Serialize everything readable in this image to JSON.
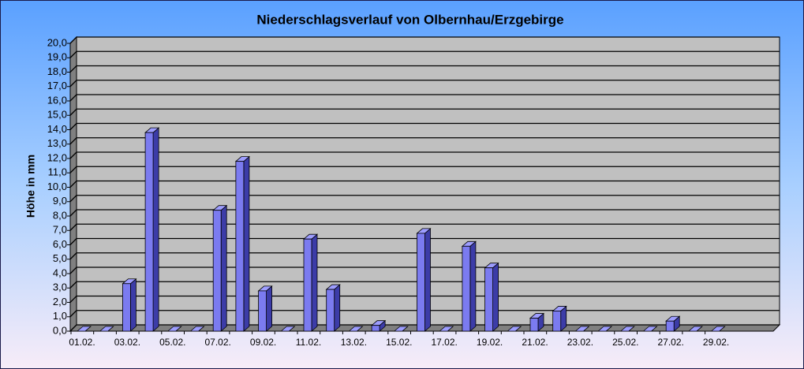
{
  "chart_data": {
    "type": "bar3d",
    "title": "Niederschlagsverlauf von Olbernhau/Erzgebirge",
    "ylabel": "Höhe in  mm",
    "categories": [
      "01.02.",
      null,
      "03.02.",
      null,
      "05.02.",
      null,
      "07.02.",
      null,
      "09.02.",
      null,
      "11.02.",
      null,
      "13.02.",
      null,
      "15.02.",
      null,
      "17.02.",
      null,
      "19.02.",
      null,
      "21.02.",
      null,
      "23.02.",
      null,
      "25.02.",
      null,
      "27.02.",
      null,
      "29.02."
    ],
    "values": [
      0,
      0,
      3.3,
      13.8,
      0,
      0,
      8.4,
      11.8,
      2.8,
      0,
      6.4,
      2.9,
      0,
      0.4,
      0,
      6.8,
      0,
      5.9,
      4.4,
      0,
      0.9,
      1.4,
      0,
      0,
      0,
      0,
      0.7,
      0,
      0
    ],
    "color": "#7b7bf0",
    "ylim": [
      0,
      20
    ],
    "yticks": [
      {
        "value": 0,
        "label": "0,0"
      },
      {
        "value": 1,
        "label": "1,0"
      },
      {
        "value": 2,
        "label": "2,0"
      },
      {
        "value": 3,
        "label": "3,0"
      },
      {
        "value": 4,
        "label": "4,0"
      },
      {
        "value": 5,
        "label": "5,0"
      },
      {
        "value": 6,
        "label": "6,0"
      },
      {
        "value": 7,
        "label": "7,0"
      },
      {
        "value": 8,
        "label": "8,0"
      },
      {
        "value": 9,
        "label": "9,0"
      },
      {
        "value": 10,
        "label": "10,0"
      },
      {
        "value": 11,
        "label": "11,0"
      },
      {
        "value": 12,
        "label": "12,0"
      },
      {
        "value": 13,
        "label": "13,0"
      },
      {
        "value": 14,
        "label": "14,0"
      },
      {
        "value": 15,
        "label": "15,0"
      },
      {
        "value": 16,
        "label": "16,0"
      },
      {
        "value": 17,
        "label": "17,0"
      },
      {
        "value": 18,
        "label": "18,0"
      },
      {
        "value": 19,
        "label": "19,0"
      },
      {
        "value": 20,
        "label": "20,0"
      }
    ],
    "grid": true
  }
}
